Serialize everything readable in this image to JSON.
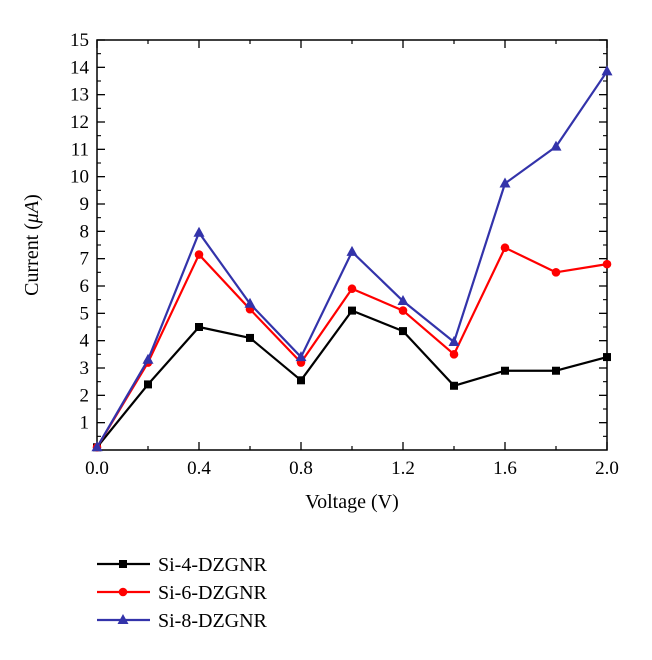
{
  "chart_data": {
    "type": "line",
    "title": "",
    "xlabel": "Voltage (V)",
    "ylabel_prefix": "Current (",
    "ylabel_unit": "μA",
    "ylabel_suffix": ")",
    "xlim": [
      0.0,
      2.0
    ],
    "ylim": [
      0,
      15
    ],
    "x_ticks": [
      "0.0",
      "0.4",
      "0.8",
      "1.2",
      "1.6",
      "2.0"
    ],
    "x_tick_values": [
      0.0,
      0.4,
      0.8,
      1.2,
      1.6,
      2.0
    ],
    "y_ticks": [
      "1",
      "2",
      "3",
      "4",
      "5",
      "6",
      "7",
      "8",
      "9",
      "10",
      "11",
      "12",
      "13",
      "14",
      "15"
    ],
    "y_tick_values": [
      1,
      2,
      3,
      4,
      5,
      6,
      7,
      8,
      9,
      10,
      11,
      12,
      13,
      14,
      15
    ],
    "grid": false,
    "legend_position": "bottom-left below plot",
    "x": [
      0.0,
      0.2,
      0.4,
      0.6,
      0.8,
      1.0,
      1.2,
      1.4,
      1.6,
      1.8,
      2.0
    ],
    "series": [
      {
        "name": "Si-4-DZGNR",
        "color": "#000000",
        "marker": "square",
        "values": [
          0.1,
          2.4,
          4.5,
          4.1,
          2.55,
          5.1,
          4.35,
          2.35,
          2.9,
          2.9,
          3.4
        ]
      },
      {
        "name": "Si-6-DZGNR",
        "color": "#ff0000",
        "marker": "circle",
        "values": [
          0.1,
          3.2,
          7.15,
          5.15,
          3.2,
          5.9,
          5.1,
          3.5,
          7.4,
          6.5,
          6.8
        ]
      },
      {
        "name": "Si-8-DZGNR",
        "color": "#3333aa",
        "marker": "triangle",
        "values": [
          0.1,
          3.3,
          7.95,
          5.35,
          3.4,
          7.25,
          5.45,
          3.95,
          9.75,
          11.1,
          13.85
        ]
      }
    ]
  }
}
